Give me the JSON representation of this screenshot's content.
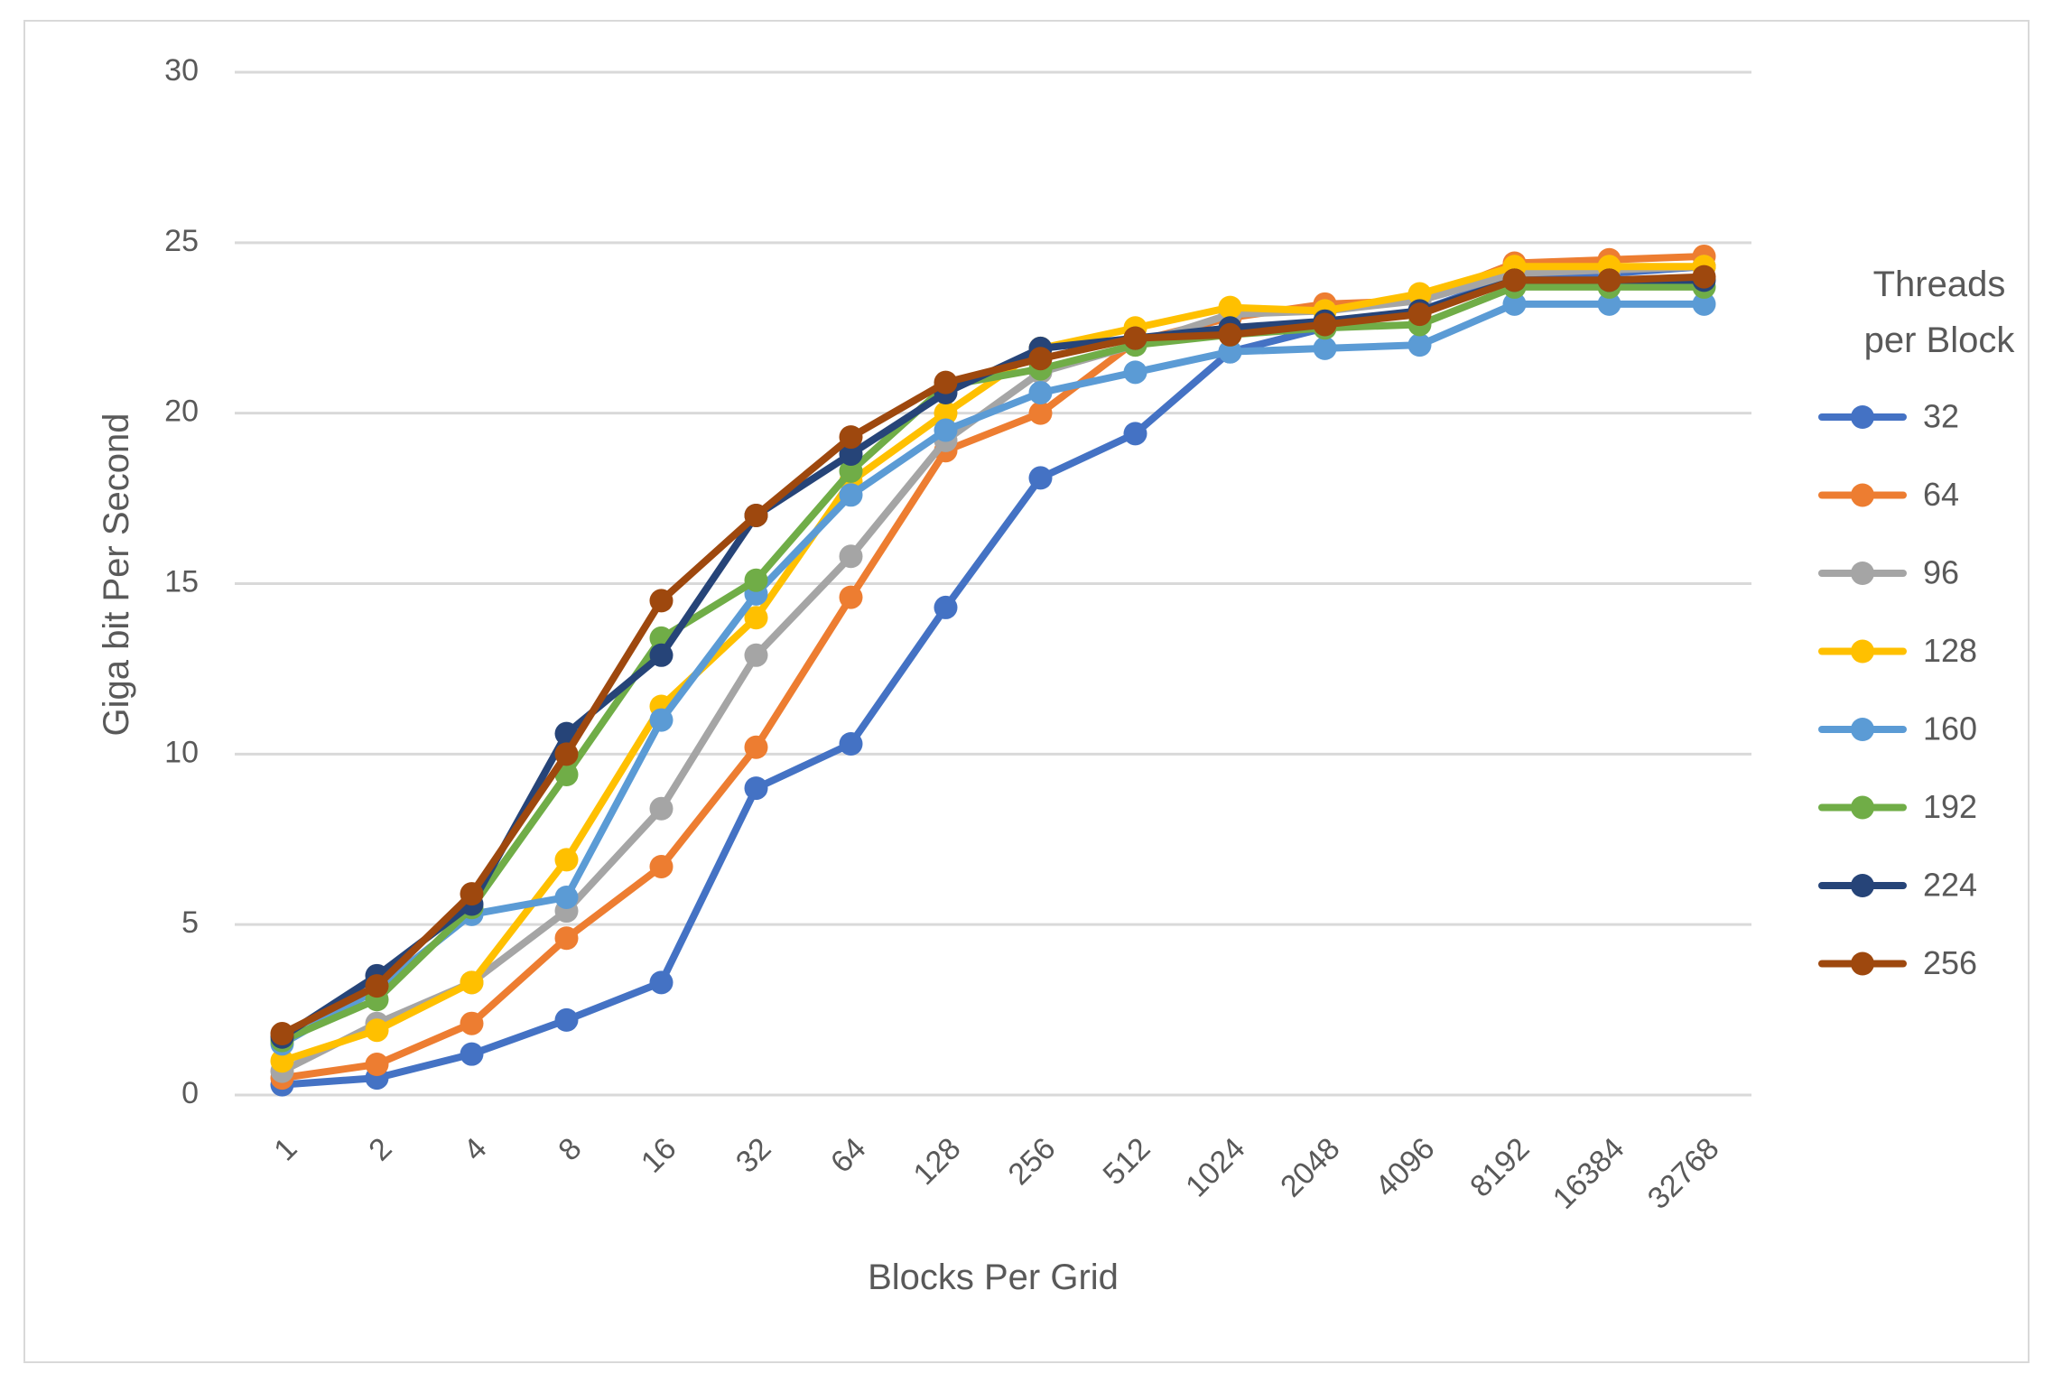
{
  "chart_data": {
    "type": "line",
    "title": "",
    "xlabel": "Blocks Per Grid",
    "ylabel": "Giga bit Per Second",
    "ylim": [
      0,
      30
    ],
    "yticks": [
      0,
      5,
      10,
      15,
      20,
      25,
      30
    ],
    "grid": true,
    "legend": {
      "title_line1": "Threads",
      "title_line2": "per Block",
      "placement": "right"
    },
    "categories": [
      "1",
      "2",
      "4",
      "8",
      "16",
      "32",
      "64",
      "128",
      "256",
      "512",
      "1024",
      "2048",
      "4096",
      "8192",
      "16384",
      "32768"
    ],
    "series": [
      {
        "name": "32",
        "color": "#4472C4",
        "values": [
          0.3,
          0.5,
          1.2,
          2.2,
          3.3,
          9.0,
          10.3,
          14.3,
          18.1,
          19.4,
          21.8,
          22.5,
          23.0,
          24.0,
          24.1,
          24.3
        ]
      },
      {
        "name": "64",
        "color": "#ED7D31",
        "values": [
          0.5,
          0.9,
          2.1,
          4.6,
          6.7,
          10.2,
          14.6,
          18.9,
          20.0,
          22.1,
          22.8,
          23.2,
          23.3,
          24.4,
          24.5,
          24.6
        ]
      },
      {
        "name": "96",
        "color": "#A5A5A5",
        "values": [
          0.7,
          2.1,
          3.3,
          5.4,
          8.4,
          12.9,
          15.8,
          19.2,
          21.2,
          22.0,
          22.9,
          23.0,
          23.3,
          24.1,
          24.2,
          24.3
        ]
      },
      {
        "name": "128",
        "color": "#FFC000",
        "values": [
          1.0,
          1.9,
          3.3,
          6.9,
          11.4,
          14.0,
          18.0,
          20.0,
          21.9,
          22.5,
          23.1,
          23.0,
          23.5,
          24.3,
          24.3,
          24.3
        ]
      },
      {
        "name": "160",
        "color": "#5B9BD5",
        "values": [
          1.5,
          3.1,
          5.3,
          5.8,
          11.0,
          14.7,
          17.6,
          19.5,
          20.6,
          21.2,
          21.8,
          21.9,
          22.0,
          23.2,
          23.2,
          23.2
        ]
      },
      {
        "name": "192",
        "color": "#70AD47",
        "values": [
          1.6,
          2.8,
          5.5,
          9.4,
          13.4,
          15.1,
          18.3,
          20.8,
          21.3,
          22.0,
          22.3,
          22.5,
          22.6,
          23.7,
          23.7,
          23.7
        ]
      },
      {
        "name": "224",
        "color": "#264478",
        "values": [
          1.7,
          3.5,
          5.6,
          10.6,
          12.9,
          17.0,
          18.8,
          20.6,
          21.9,
          22.2,
          22.5,
          22.7,
          23.0,
          23.9,
          23.9,
          23.9
        ]
      },
      {
        "name": "256",
        "color": "#9E480E",
        "values": [
          1.8,
          3.2,
          5.9,
          10.0,
          14.5,
          17.0,
          19.3,
          20.9,
          21.6,
          22.2,
          22.3,
          22.6,
          22.9,
          23.9,
          23.9,
          24.0
        ]
      }
    ]
  }
}
